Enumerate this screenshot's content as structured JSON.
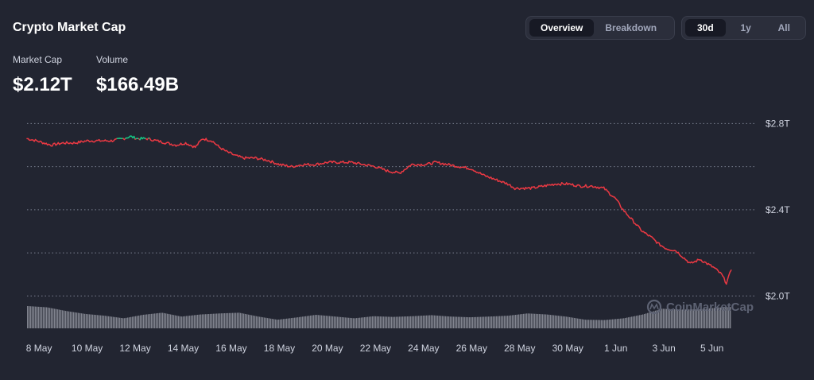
{
  "header": {
    "title": "Crypto Market Cap",
    "view_tabs": [
      {
        "label": "Overview",
        "active": true
      },
      {
        "label": "Breakdown",
        "active": false
      }
    ],
    "range_tabs": [
      {
        "label": "30d",
        "active": true
      },
      {
        "label": "1y",
        "active": false
      },
      {
        "label": "All",
        "active": false
      }
    ]
  },
  "stats": {
    "market_cap_label": "Market Cap",
    "market_cap_value": "$2.12T",
    "volume_label": "Volume",
    "volume_value": "$166.49B"
  },
  "watermark": "CoinMarketCap",
  "colors": {
    "up": "#16c784",
    "down": "#ea3943",
    "volume": "#9a9ca8",
    "grid": "#7a7f8f",
    "background": "#222531"
  },
  "chart_data": {
    "type": "line",
    "title": "",
    "xlabel": "",
    "ylabel": "",
    "y_tick_labels": [
      "$2.8T",
      "$2.4T",
      "$2.0T"
    ],
    "y_ticks": [
      2.8,
      2.4,
      2.0
    ],
    "ylim": [
      1.99,
      2.82
    ],
    "x_tick_labels": [
      "8 May",
      "10 May",
      "12 May",
      "14 May",
      "16 May",
      "18 May",
      "20 May",
      "22 May",
      "24 May",
      "26 May",
      "28 May",
      "30 May",
      "1 Jun",
      "3 Jun",
      "5 Jun"
    ],
    "x_ticks": [
      7.5,
      9.5,
      11.5,
      13.5,
      15.5,
      17.5,
      19.5,
      21.5,
      23.5,
      25.5,
      27.5,
      29.5,
      31.5,
      33.5,
      35.5
    ],
    "xlim": [
      7.0,
      37.0
    ],
    "x_unit": "days since 1 May",
    "grid": true,
    "baseline": 2.73,
    "series": [
      {
        "x": [
          7.0,
          7.4,
          7.7,
          8.0,
          8.5,
          9.0,
          9.5,
          10.0,
          10.5,
          11.0,
          11.3,
          11.6,
          12.0,
          12.4,
          12.8,
          13.2,
          13.6,
          14.0,
          14.3,
          14.7,
          15.0,
          15.3,
          15.7,
          16.0,
          16.5,
          17.0,
          17.5,
          18.0,
          18.5,
          19.0,
          19.5,
          20.0,
          20.5,
          21.0,
          21.5,
          22.0,
          22.5,
          23.0,
          23.3,
          23.6,
          24.0,
          24.5,
          25.0,
          25.5,
          26.0,
          26.5,
          27.0,
          27.3,
          27.6,
          28.0,
          28.5,
          29.0,
          29.5,
          30.0,
          30.5,
          31.0,
          31.5,
          31.8,
          32.2,
          32.6,
          33.0,
          33.3,
          33.6,
          34.0,
          34.3,
          34.6,
          35.0,
          35.3,
          35.6,
          35.9,
          36.1,
          36.3
        ],
        "y": [
          2.73,
          2.72,
          2.71,
          2.7,
          2.71,
          2.71,
          2.72,
          2.72,
          2.72,
          2.73,
          2.74,
          2.73,
          2.73,
          2.72,
          2.71,
          2.7,
          2.71,
          2.69,
          2.73,
          2.72,
          2.69,
          2.67,
          2.65,
          2.64,
          2.64,
          2.63,
          2.61,
          2.6,
          2.61,
          2.61,
          2.62,
          2.62,
          2.62,
          2.61,
          2.6,
          2.58,
          2.57,
          2.61,
          2.61,
          2.61,
          2.62,
          2.61,
          2.6,
          2.59,
          2.56,
          2.54,
          2.52,
          2.5,
          2.5,
          2.5,
          2.51,
          2.52,
          2.52,
          2.51,
          2.51,
          2.5,
          2.45,
          2.4,
          2.35,
          2.3,
          2.27,
          2.24,
          2.22,
          2.21,
          2.18,
          2.15,
          2.17,
          2.15,
          2.13,
          2.1,
          2.06,
          2.12
        ]
      }
    ],
    "volume_series": {
      "x": [
        7.0,
        7.8,
        8.6,
        9.4,
        10.2,
        11.0,
        11.8,
        12.6,
        13.4,
        14.2,
        15.0,
        15.8,
        16.6,
        17.4,
        18.2,
        19.0,
        19.8,
        20.6,
        21.4,
        22.2,
        23.0,
        23.8,
        24.6,
        25.4,
        26.2,
        27.0,
        27.8,
        28.6,
        29.4,
        30.2,
        31.0,
        31.8,
        32.6,
        33.4,
        34.2,
        35.0,
        35.8,
        36.3
      ],
      "relative": [
        1.0,
        0.93,
        0.72,
        0.55,
        0.45,
        0.3,
        0.5,
        0.62,
        0.4,
        0.52,
        0.58,
        0.62,
        0.4,
        0.22,
        0.35,
        0.5,
        0.4,
        0.3,
        0.42,
        0.38,
        0.42,
        0.48,
        0.4,
        0.36,
        0.4,
        0.45,
        0.58,
        0.52,
        0.4,
        0.22,
        0.2,
        0.3,
        0.52,
        0.85,
        0.8,
        0.82,
        0.92,
        0.95
      ]
    }
  }
}
